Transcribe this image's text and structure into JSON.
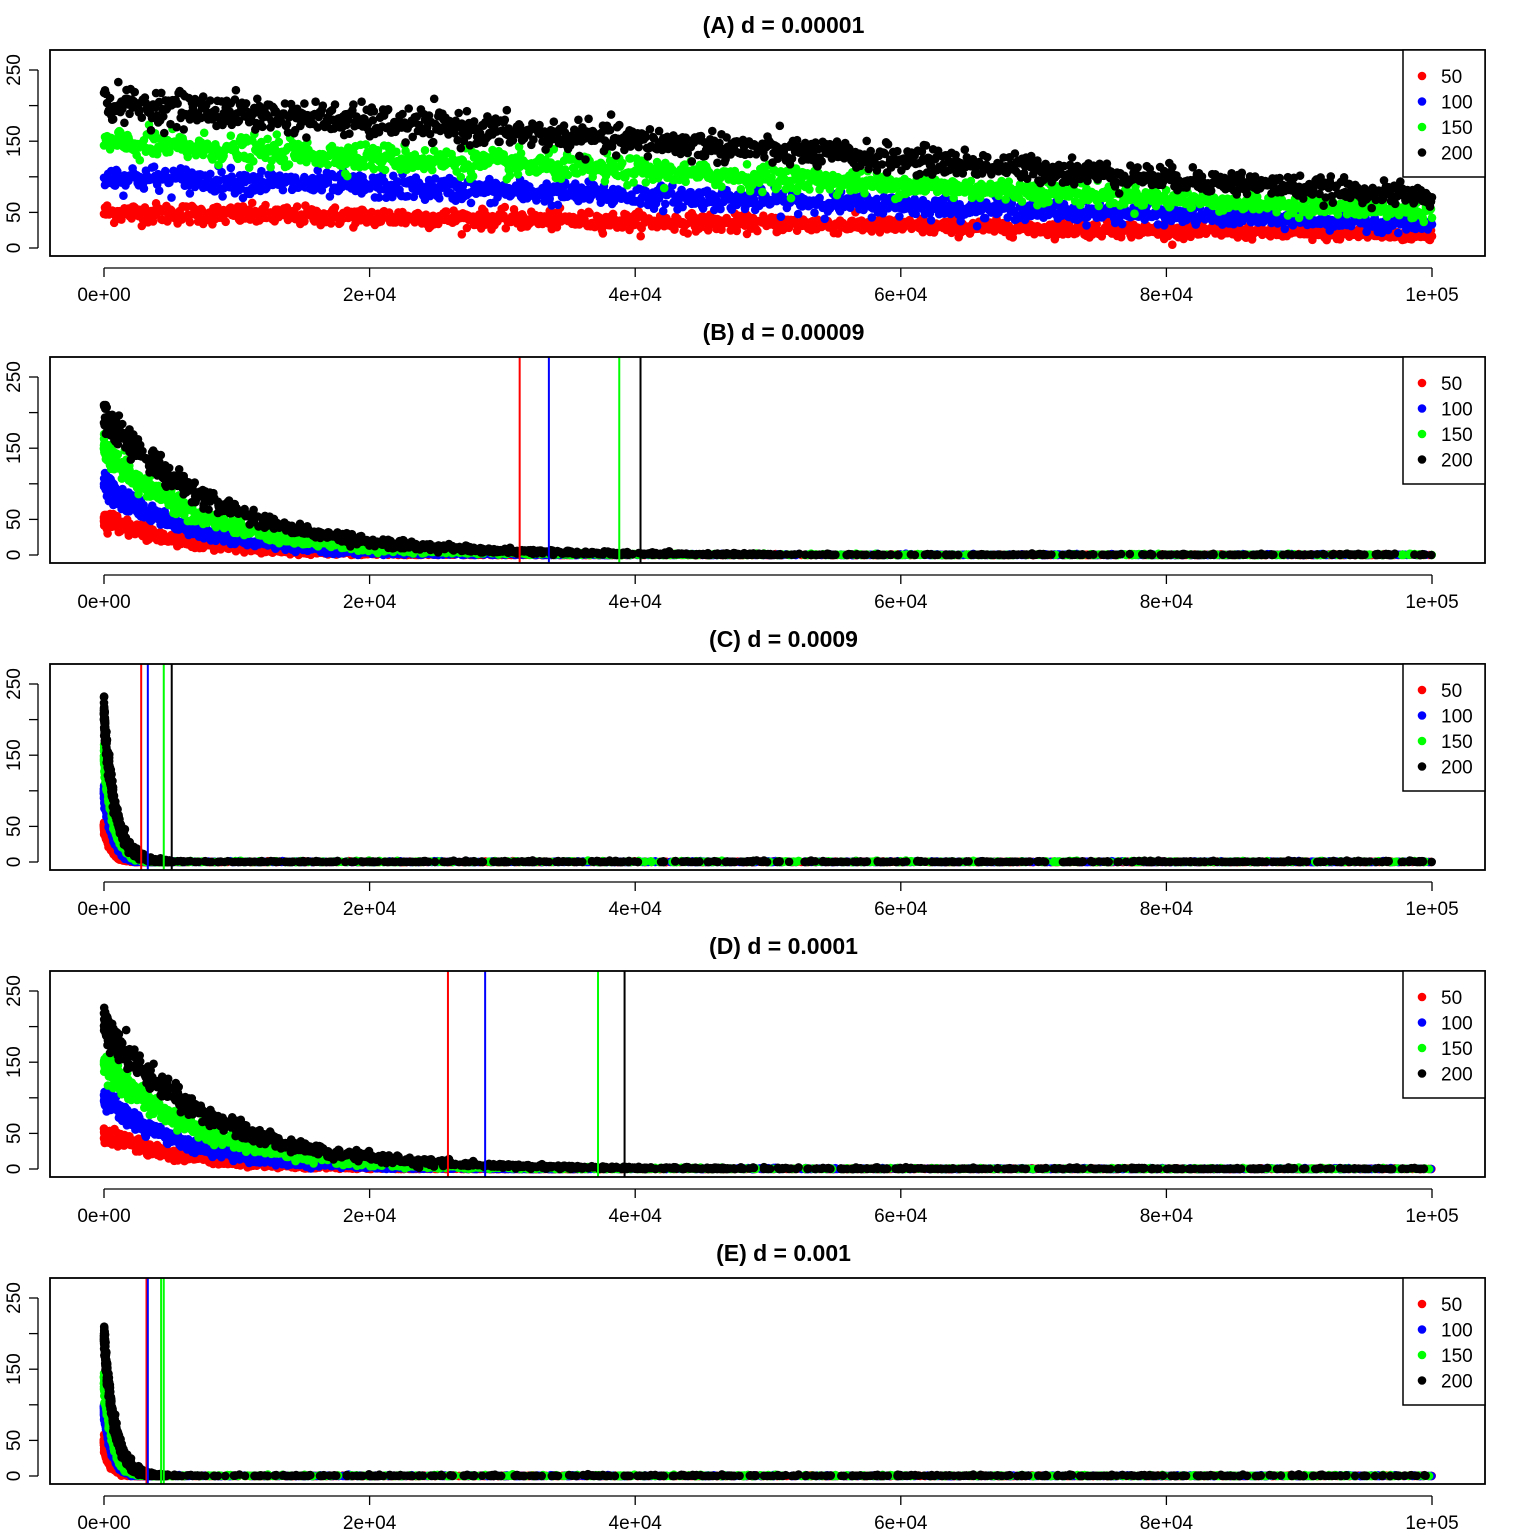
{
  "chart_data": [
    {
      "type": "scatter",
      "title": "(A) d = 0.00001",
      "xlabel": "",
      "ylabel": "",
      "xlim": [
        0,
        100000
      ],
      "ylim": [
        0,
        250
      ],
      "x_ticks": [
        {
          "v": 0,
          "label": "0e+00"
        },
        {
          "v": 20000,
          "label": "2e+04"
        },
        {
          "v": 40000,
          "label": "4e+04"
        },
        {
          "v": 60000,
          "label": "6e+04"
        },
        {
          "v": 80000,
          "label": "8e+04"
        },
        {
          "v": 100000,
          "label": "1e+05"
        }
      ],
      "y_ticks": [
        {
          "v": 0,
          "label": "0"
        },
        {
          "v": 50,
          "label": "50"
        },
        {
          "v": 150,
          "label": "150"
        },
        {
          "v": 250,
          "label": "250"
        }
      ],
      "legend_position": "top-right",
      "series": [
        {
          "name": "50",
          "color": "#ff0000",
          "start": 50,
          "end": 18,
          "decay": "linear",
          "noise": 7
        },
        {
          "name": "100",
          "color": "#0000ff",
          "start": 100,
          "end": 33,
          "decay": "linear",
          "noise": 9
        },
        {
          "name": "150",
          "color": "#00ff00",
          "start": 147,
          "end": 50,
          "decay": "linear",
          "noise": 10
        },
        {
          "name": "200",
          "color": "#000000",
          "start": 203,
          "end": 72,
          "decay": "linear",
          "noise": 12
        }
      ],
      "vlines": []
    },
    {
      "type": "scatter",
      "title": "(B) d = 0.00009",
      "xlabel": "",
      "ylabel": "",
      "xlim": [
        0,
        100000
      ],
      "ylim": [
        0,
        250
      ],
      "x_ticks": [
        {
          "v": 0,
          "label": "0e+00"
        },
        {
          "v": 20000,
          "label": "2e+04"
        },
        {
          "v": 40000,
          "label": "4e+04"
        },
        {
          "v": 60000,
          "label": "6e+04"
        },
        {
          "v": 80000,
          "label": "8e+04"
        },
        {
          "v": 100000,
          "label": "1e+05"
        }
      ],
      "y_ticks": [
        {
          "v": 0,
          "label": "0"
        },
        {
          "v": 50,
          "label": "50"
        },
        {
          "v": 150,
          "label": "150"
        },
        {
          "v": 250,
          "label": "250"
        }
      ],
      "legend_position": "top-right",
      "series": [
        {
          "name": "50",
          "color": "#ff0000",
          "start": 50,
          "tau": 6500,
          "noise": 6
        },
        {
          "name": "100",
          "color": "#0000ff",
          "start": 100,
          "tau": 6500,
          "noise": 8
        },
        {
          "name": "150",
          "color": "#00ff00",
          "start": 148,
          "tau": 7500,
          "noise": 9
        },
        {
          "name": "200",
          "color": "#000000",
          "start": 198,
          "tau": 8500,
          "noise": 11
        }
      ],
      "vlines": [
        {
          "x": 31300,
          "color": "#ff0000"
        },
        {
          "x": 33500,
          "color": "#0000ff"
        },
        {
          "x": 38800,
          "color": "#00ff00"
        },
        {
          "x": 40400,
          "color": "#000000"
        }
      ]
    },
    {
      "type": "scatter",
      "title": "(C) d = 0.0009",
      "xlabel": "",
      "ylabel": "",
      "xlim": [
        0,
        100000
      ],
      "ylim": [
        0,
        250
      ],
      "x_ticks": [
        {
          "v": 0,
          "label": "0e+00"
        },
        {
          "v": 20000,
          "label": "2e+04"
        },
        {
          "v": 40000,
          "label": "4e+04"
        },
        {
          "v": 60000,
          "label": "6e+04"
        },
        {
          "v": 80000,
          "label": "8e+04"
        },
        {
          "v": 100000,
          "label": "1e+05"
        }
      ],
      "y_ticks": [
        {
          "v": 0,
          "label": "0"
        },
        {
          "v": 50,
          "label": "50"
        },
        {
          "v": 150,
          "label": "150"
        },
        {
          "v": 250,
          "label": "250"
        }
      ],
      "legend_position": "top-right",
      "series": [
        {
          "name": "50",
          "color": "#ff0000",
          "start": 50,
          "tau": 650,
          "noise": 5
        },
        {
          "name": "100",
          "color": "#0000ff",
          "start": 100,
          "tau": 700,
          "noise": 7
        },
        {
          "name": "150",
          "color": "#00ff00",
          "start": 148,
          "tau": 800,
          "noise": 9
        },
        {
          "name": "200",
          "color": "#000000",
          "start": 205,
          "tau": 850,
          "noise": 11
        }
      ],
      "vlines": [
        {
          "x": 2800,
          "color": "#ff0000"
        },
        {
          "x": 3300,
          "color": "#0000ff"
        },
        {
          "x": 4500,
          "color": "#00ff00"
        },
        {
          "x": 5100,
          "color": "#000000"
        }
      ]
    },
    {
      "type": "scatter",
      "title": "(D) d = 0.0001",
      "xlabel": "",
      "ylabel": "",
      "xlim": [
        0,
        100000
      ],
      "ylim": [
        0,
        250
      ],
      "x_ticks": [
        {
          "v": 0,
          "label": "0e+00"
        },
        {
          "v": 20000,
          "label": "2e+04"
        },
        {
          "v": 40000,
          "label": "4e+04"
        },
        {
          "v": 60000,
          "label": "6e+04"
        },
        {
          "v": 80000,
          "label": "8e+04"
        },
        {
          "v": 100000,
          "label": "1e+05"
        }
      ],
      "y_ticks": [
        {
          "v": 0,
          "label": "0"
        },
        {
          "v": 50,
          "label": "50"
        },
        {
          "v": 150,
          "label": "150"
        },
        {
          "v": 250,
          "label": "250"
        }
      ],
      "legend_position": "top-right",
      "series": [
        {
          "name": "50",
          "color": "#ff0000",
          "start": 50,
          "tau": 6000,
          "noise": 6
        },
        {
          "name": "100",
          "color": "#0000ff",
          "start": 100,
          "tau": 6000,
          "noise": 8
        },
        {
          "name": "150",
          "color": "#00ff00",
          "start": 150,
          "tau": 7000,
          "noise": 9
        },
        {
          "name": "200",
          "color": "#000000",
          "start": 200,
          "tau": 8000,
          "noise": 11
        }
      ],
      "vlines": [
        {
          "x": 25900,
          "color": "#ff0000"
        },
        {
          "x": 28700,
          "color": "#0000ff"
        },
        {
          "x": 37200,
          "color": "#00ff00"
        },
        {
          "x": 39200,
          "color": "#000000"
        }
      ]
    },
    {
      "type": "scatter",
      "title": "(E) d = 0.001",
      "xlabel": "",
      "ylabel": "",
      "xlim": [
        0,
        100000
      ],
      "ylim": [
        0,
        250
      ],
      "x_ticks": [
        {
          "v": 0,
          "label": "0e+00"
        },
        {
          "v": 20000,
          "label": "2e+04"
        },
        {
          "v": 40000,
          "label": "4e+04"
        },
        {
          "v": 60000,
          "label": "6e+04"
        },
        {
          "v": 80000,
          "label": "8e+04"
        },
        {
          "v": 100000,
          "label": "1e+05"
        }
      ],
      "y_ticks": [
        {
          "v": 0,
          "label": "0"
        },
        {
          "v": 50,
          "label": "50"
        },
        {
          "v": 150,
          "label": "150"
        },
        {
          "v": 250,
          "label": "250"
        }
      ],
      "legend_position": "top-right",
      "series": [
        {
          "name": "50",
          "color": "#ff0000",
          "start": 45,
          "tau": 600,
          "noise": 5
        },
        {
          "name": "100",
          "color": "#0000ff",
          "start": 95,
          "tau": 650,
          "noise": 7
        },
        {
          "name": "150",
          "color": "#00ff00",
          "start": 135,
          "tau": 700,
          "noise": 9
        },
        {
          "name": "200",
          "color": "#000000",
          "start": 195,
          "tau": 800,
          "noise": 11
        }
      ],
      "vlines": [
        {
          "x": 3200,
          "color": "#ff0000"
        },
        {
          "x": 3300,
          "color": "#0000ff"
        },
        {
          "x": 4300,
          "color": "#00ff00"
        },
        {
          "x": 4500,
          "color": "#00ff00"
        }
      ]
    }
  ]
}
